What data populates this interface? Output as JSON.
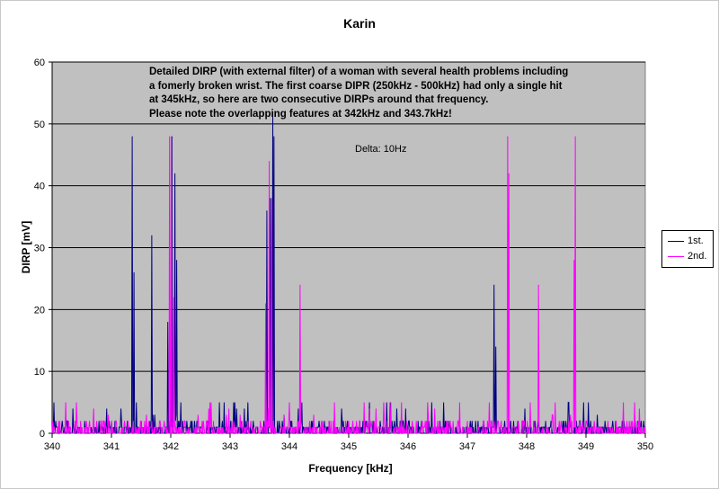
{
  "chart_data": {
    "type": "line",
    "title": "Karin",
    "xlabel": "Frequency [kHz]",
    "ylabel": "DIRP [mV]",
    "xlim": [
      340,
      350
    ],
    "ylim": [
      0,
      60
    ],
    "x_ticks": [
      "340",
      "341",
      "342",
      "343",
      "344",
      "345",
      "346",
      "347",
      "348",
      "349",
      "350"
    ],
    "y_ticks": [
      "0",
      "10",
      "20",
      "30",
      "40",
      "50",
      "60"
    ],
    "grid": true,
    "legend_position": "right",
    "annotation_lines": [
      "Detailed DIRP (with external filter) of a woman with several health problems including",
      "a fomerly broken wrist. The first coarse DIPR (250kHz - 500kHz) had only a single hit",
      "at 345kHz, so here are two consecutive DIRPs around that frequency.",
      "Please note the overlapping features at 342kHz and 343.7kHz!"
    ],
    "note": "Delta: 10Hz",
    "series": [
      {
        "name": "1st.",
        "color": "#000080",
        "peaks": [
          [
            341.35,
            48
          ],
          [
            341.38,
            26
          ],
          [
            341.68,
            32
          ],
          [
            341.95,
            18
          ],
          [
            342.02,
            48
          ],
          [
            342.07,
            42
          ],
          [
            342.1,
            28
          ],
          [
            343.62,
            36
          ],
          [
            343.68,
            38
          ],
          [
            343.72,
            52
          ],
          [
            343.74,
            48
          ],
          [
            347.45,
            24
          ],
          [
            347.48,
            14
          ]
        ]
      },
      {
        "name": "2nd.",
        "color": "#ff00ff",
        "peaks": [
          [
            341.98,
            48
          ],
          [
            342.01,
            48
          ],
          [
            342.05,
            22
          ],
          [
            343.6,
            21
          ],
          [
            343.66,
            44
          ],
          [
            343.7,
            38
          ],
          [
            344.18,
            24
          ],
          [
            347.68,
            48
          ],
          [
            347.7,
            42
          ],
          [
            348.2,
            24
          ],
          [
            348.82,
            48
          ],
          [
            348.8,
            28
          ]
        ]
      }
    ]
  },
  "colors": {
    "plot_background": "#c0c0c0",
    "grid": "#000000"
  }
}
